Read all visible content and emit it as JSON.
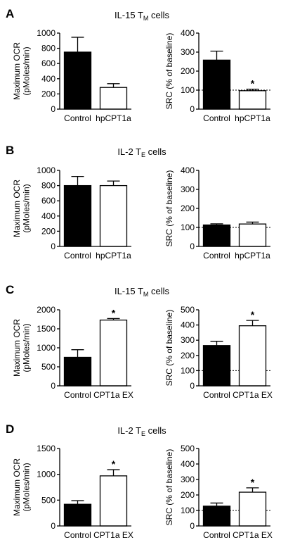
{
  "panels": [
    {
      "letter": "A",
      "title_main": "IL-15 T",
      "title_sub": "M",
      "title_tail": " cells"
    },
    {
      "letter": "B",
      "title_main": "IL-2 T",
      "title_sub": "E",
      "title_tail": " cells"
    },
    {
      "letter": "C",
      "title_main": "IL-15 T",
      "title_sub": "M",
      "title_tail": " cells"
    },
    {
      "letter": "D",
      "title_main": "IL-2 T",
      "title_sub": "E",
      "title_tail": " cells"
    }
  ],
  "chart_data": [
    {
      "id": "A-left",
      "type": "bar",
      "ylabel": [
        "Maximum OCR",
        "(pMoles/min)"
      ],
      "categories": [
        "Control",
        "hpCPT1a"
      ],
      "values": [
        750,
        285
      ],
      "errors": [
        195,
        50
      ],
      "ylim": [
        0,
        1000
      ],
      "yticks": [
        0,
        200,
        400,
        600,
        800,
        1000
      ],
      "fills": [
        "#000000",
        "#ffffff"
      ],
      "significance": [
        "",
        ""
      ],
      "baseline": null
    },
    {
      "id": "A-right",
      "type": "bar",
      "ylabel": [
        "SRC (% of baseline)"
      ],
      "categories": [
        "Control",
        "hpCPT1a"
      ],
      "values": [
        258,
        97
      ],
      "errors": [
        47,
        8
      ],
      "ylim": [
        0,
        400
      ],
      "yticks": [
        0,
        100,
        200,
        300,
        400
      ],
      "fills": [
        "#000000",
        "#ffffff"
      ],
      "significance": [
        "",
        "*"
      ],
      "baseline": 100
    },
    {
      "id": "B-left",
      "type": "bar",
      "ylabel": [
        "Maximum OCR",
        "(pMoles/min)"
      ],
      "categories": [
        "Control",
        "hpCPT1a"
      ],
      "values": [
        800,
        800
      ],
      "errors": [
        120,
        60
      ],
      "ylim": [
        0,
        1000
      ],
      "yticks": [
        0,
        200,
        400,
        600,
        800,
        1000
      ],
      "fills": [
        "#000000",
        "#ffffff"
      ],
      "significance": [
        "",
        ""
      ],
      "baseline": null
    },
    {
      "id": "B-right",
      "type": "bar",
      "ylabel": [
        "SRC (% of baseline)"
      ],
      "categories": [
        "Control",
        "hpCPT1a"
      ],
      "values": [
        113,
        118
      ],
      "errors": [
        6,
        10
      ],
      "ylim": [
        0,
        400
      ],
      "yticks": [
        0,
        100,
        200,
        300,
        400
      ],
      "fills": [
        "#000000",
        "#ffffff"
      ],
      "significance": [
        "",
        ""
      ],
      "baseline": 100
    },
    {
      "id": "C-left",
      "type": "bar",
      "ylabel": [
        "Maximum OCR",
        "(pMoles/min)"
      ],
      "categories": [
        "Control",
        "CPT1a EX"
      ],
      "values": [
        750,
        1730
      ],
      "errors": [
        200,
        40
      ],
      "ylim": [
        0,
        2000
      ],
      "yticks": [
        0,
        500,
        1000,
        1500,
        2000
      ],
      "fills": [
        "#000000",
        "#ffffff"
      ],
      "significance": [
        "",
        "*"
      ],
      "baseline": null
    },
    {
      "id": "C-right",
      "type": "bar",
      "ylabel": [
        "SRC (% of baseline)"
      ],
      "categories": [
        "Control",
        "CPT1a EX"
      ],
      "values": [
        265,
        395
      ],
      "errors": [
        28,
        35
      ],
      "ylim": [
        0,
        500
      ],
      "yticks": [
        0,
        100,
        200,
        300,
        400,
        500
      ],
      "fills": [
        "#000000",
        "#ffffff"
      ],
      "significance": [
        "",
        "*"
      ],
      "baseline": 100
    },
    {
      "id": "D-left",
      "type": "bar",
      "ylabel": [
        "Maximum OCR",
        "(pMoles/min)"
      ],
      "categories": [
        "Control",
        "CPT1a EX"
      ],
      "values": [
        420,
        970
      ],
      "errors": [
        70,
        120
      ],
      "ylim": [
        0,
        1500
      ],
      "yticks": [
        0,
        500,
        1000,
        1500
      ],
      "fills": [
        "#000000",
        "#ffffff"
      ],
      "significance": [
        "",
        "*"
      ],
      "baseline": null
    },
    {
      "id": "D-right",
      "type": "bar",
      "ylabel": [
        "SRC (% of baseline)"
      ],
      "categories": [
        "Control",
        "CPT1a EX"
      ],
      "values": [
        128,
        218
      ],
      "errors": [
        20,
        28
      ],
      "ylim": [
        0,
        500
      ],
      "yticks": [
        0,
        100,
        200,
        300,
        400,
        500
      ],
      "fills": [
        "#000000",
        "#ffffff"
      ],
      "significance": [
        "",
        "*"
      ],
      "baseline": 100
    }
  ]
}
